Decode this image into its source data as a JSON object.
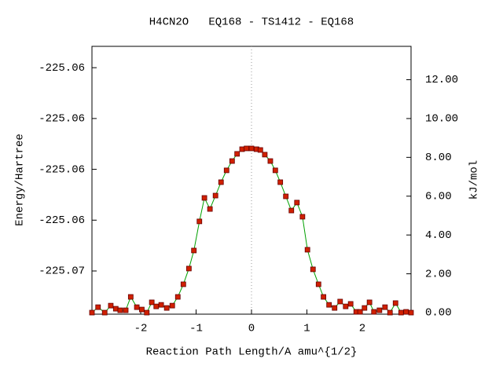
{
  "chart_data": {
    "type": "line",
    "title": "H4CN2O   EQ168 - TS1412 - EQ168",
    "x_label": "Reaction Path Length/A amu^{1/2}",
    "y_label": "Energy/Hartree",
    "y2_label": "kJ/mol",
    "xlim": [
      -2.88,
      2.88
    ],
    "xticks": [
      -2,
      -1,
      0,
      1,
      2
    ],
    "ylim": [
      -225.06635,
      -225.06108
    ],
    "yticks": [
      {
        "value": -225.0655,
        "label": "-225.07"
      },
      {
        "value": -225.0645,
        "label": "-225.06"
      },
      {
        "value": -225.0635,
        "label": "-225.06"
      },
      {
        "value": -225.0625,
        "label": "-225.06"
      },
      {
        "value": -225.0615,
        "label": "-225.06"
      }
    ],
    "y2lim": [
      -0.08,
      13.72
    ],
    "y2ticks": [
      {
        "value": 0,
        "label": "0.00"
      },
      {
        "value": 2,
        "label": "2.00"
      },
      {
        "value": 4,
        "label": "4.00"
      },
      {
        "value": 6,
        "label": "6.00"
      },
      {
        "value": 8,
        "label": "8.00"
      },
      {
        "value": 10,
        "label": "10.00"
      },
      {
        "value": 12,
        "label": "12.00"
      }
    ],
    "x": [
      -2.88,
      -2.77,
      -2.65,
      -2.54,
      -2.45,
      -2.37,
      -2.27,
      -2.18,
      -2.07,
      -1.98,
      -1.89,
      -1.8,
      -1.72,
      -1.63,
      -1.53,
      -1.43,
      -1.33,
      -1.23,
      -1.13,
      -1.04,
      -0.94,
      -0.85,
      -0.75,
      -0.65,
      -0.55,
      -0.45,
      -0.35,
      -0.26,
      -0.17,
      -0.09,
      0,
      0.09,
      0.16,
      0.24,
      0.34,
      0.43,
      0.52,
      0.62,
      0.72,
      0.82,
      0.92,
      1.01,
      1.11,
      1.21,
      1.3,
      1.4,
      1.5,
      1.6,
      1.7,
      1.79,
      1.89,
      1.96,
      2.04,
      2.13,
      2.21,
      2.31,
      2.41,
      2.5,
      2.6,
      2.7,
      2.79,
      2.88
    ],
    "series": [
      {
        "axis": "y2",
        "color": "#00a000",
        "marker_color": "#d02000",
        "values": [
          0,
          0.28,
          0,
          0.36,
          0.2,
          0.12,
          0.12,
          0.81,
          0.28,
          0.16,
          0,
          0.53,
          0.32,
          0.4,
          0.24,
          0.36,
          0.81,
          1.46,
          2.27,
          3.2,
          4.7,
          5.91,
          5.34,
          6.03,
          6.72,
          7.33,
          7.81,
          8.18,
          8.42,
          8.46,
          8.46,
          8.42,
          8.38,
          8.14,
          7.81,
          7.33,
          6.72,
          5.99,
          5.26,
          5.67,
          4.94,
          3.24,
          2.23,
          1.46,
          0.81,
          0.4,
          0.24,
          0.57,
          0.32,
          0.45,
          0.04,
          0.04,
          0.24,
          0.53,
          0.04,
          0.12,
          0.28,
          0,
          0.49,
          0,
          0.04,
          0
        ]
      }
    ]
  }
}
